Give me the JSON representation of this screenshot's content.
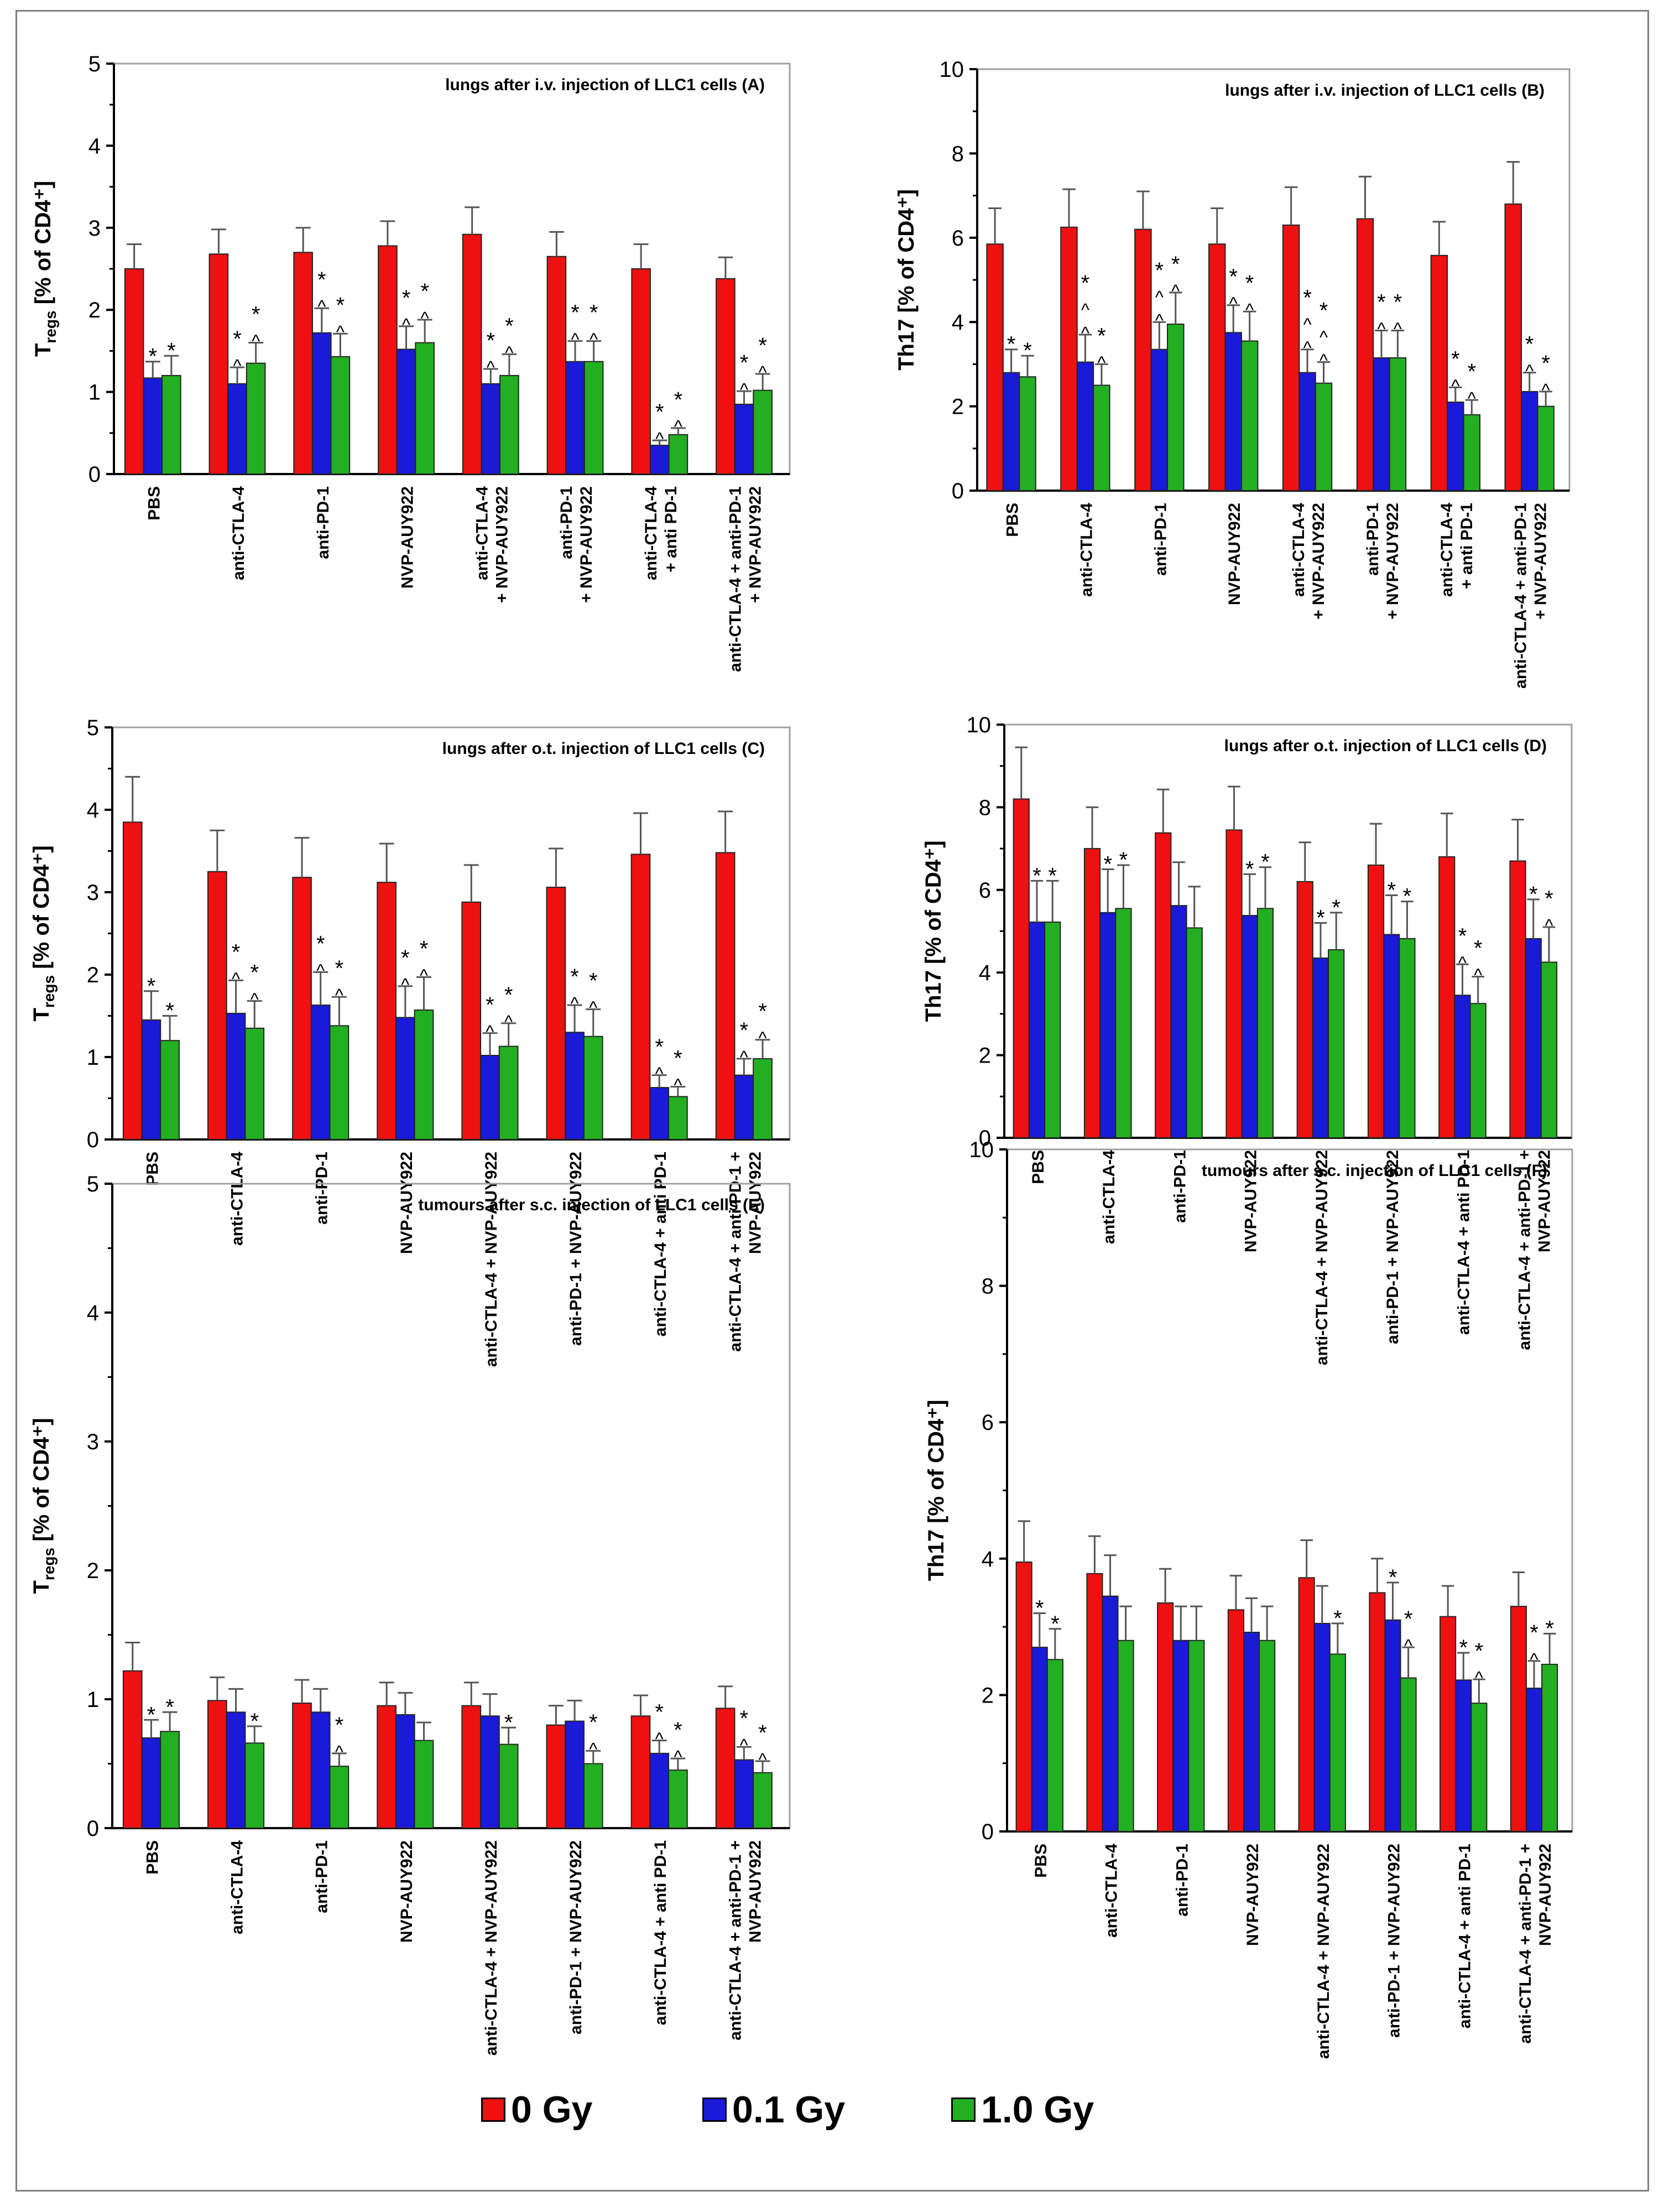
{
  "colors": {
    "0 Gy": "#ee1111",
    "0.1 Gy": "#1a1ad9",
    "1.0 Gy": "#22b022",
    "axis": "#000000",
    "error": "#555555"
  },
  "legend": {
    "items": [
      {
        "label": "0 Gy",
        "color": "#ee1111"
      },
      {
        "label": "0.1 Gy",
        "color": "#1a1ad9"
      },
      {
        "label": "1.0 Gy",
        "color": "#22b022"
      }
    ]
  },
  "chart_data": [
    {
      "id": "A",
      "type": "bar",
      "title": "lungs after i.v. injection of LLC1 cells (A)",
      "ylabel_main": "T",
      "ylabel_sub": "regs",
      "ylabel_rest": " [% of CD4⁺]",
      "ylim": [
        0,
        5
      ],
      "yticks": [
        "0",
        "1",
        "2",
        "3",
        "4",
        "5"
      ],
      "categories": [
        "PBS",
        "anti-CTLA-4",
        "anti-PD-1",
        "NVP-AUY922",
        "anti-CTLA-4\n+ NVP-AUY922",
        "anti-PD-1\n+ NVP-AUY922",
        "anti-CTLA-4\n+ anti PD-1",
        "anti-CTLA-4 + anti-PD-1\n+ NVP-AUY922"
      ],
      "series": [
        {
          "name": "0 Gy",
          "values": [
            2.5,
            2.68,
            2.7,
            2.78,
            2.92,
            2.65,
            2.5,
            2.38
          ],
          "errors": [
            0.3,
            0.3,
            0.3,
            0.3,
            0.33,
            0.3,
            0.3,
            0.26
          ]
        },
        {
          "name": "0.1 Gy",
          "values": [
            1.17,
            1.1,
            1.72,
            1.52,
            1.1,
            1.37,
            0.35,
            0.85
          ],
          "errors": [
            0.2,
            0.2,
            0.3,
            0.28,
            0.18,
            0.25,
            0.06,
            0.16
          ]
        },
        {
          "name": "1.0 Gy",
          "values": [
            1.2,
            1.35,
            1.43,
            1.6,
            1.2,
            1.37,
            0.48,
            1.02
          ],
          "errors": [
            0.24,
            0.25,
            0.28,
            0.28,
            0.26,
            0.25,
            0.08,
            0.2
          ]
        }
      ],
      "annotations": [
        [
          "",
          "*",
          "*"
        ],
        [
          "",
          "*^",
          "*^"
        ],
        [
          "",
          "*^",
          "*^"
        ],
        [
          "",
          "*^",
          "*^"
        ],
        [
          "",
          "*^",
          "*^"
        ],
        [
          "",
          "*^",
          "*^"
        ],
        [
          "",
          "*^",
          "*^"
        ],
        [
          "",
          "*^",
          "*^"
        ]
      ]
    },
    {
      "id": "B",
      "type": "bar",
      "title": "lungs after i.v. injection of LLC1 cells (B)",
      "ylabel_main": "Th17",
      "ylabel_sub": "",
      "ylabel_rest": " [% of CD4⁺]",
      "ylim": [
        0,
        10
      ],
      "yticks": [
        "0",
        "2",
        "4",
        "6",
        "8",
        "10"
      ],
      "categories": [
        "PBS",
        "anti-CTLA-4",
        "anti-PD-1",
        "NVP-AUY922",
        "anti-CTLA-4\n+ NVP-AUY922",
        "anti-PD-1\n+ NVP-AUY922",
        "anti-CTLA-4\n+ anti PD-1",
        "anti-CTLA-4 + anti-PD-1\n+ NVP-AUY922"
      ],
      "series": [
        {
          "name": "0 Gy",
          "values": [
            5.85,
            6.25,
            6.2,
            5.85,
            6.3,
            6.45,
            5.58,
            6.8
          ],
          "errors": [
            0.85,
            0.9,
            0.9,
            0.85,
            0.9,
            1.0,
            0.8,
            1.0
          ]
        },
        {
          "name": "0.1 Gy",
          "values": [
            2.8,
            3.05,
            3.35,
            3.75,
            2.8,
            3.15,
            2.1,
            2.35
          ],
          "errors": [
            0.55,
            0.65,
            0.65,
            0.65,
            0.55,
            0.65,
            0.35,
            0.45
          ]
        },
        {
          "name": "1.0 Gy",
          "values": [
            2.7,
            2.5,
            3.95,
            3.55,
            2.55,
            3.15,
            1.8,
            2.0
          ],
          "errors": [
            0.5,
            0.5,
            0.75,
            0.7,
            0.5,
            0.65,
            0.35,
            0.35
          ]
        }
      ],
      "annotations": [
        [
          "",
          "*",
          "*"
        ],
        [
          "",
          "*^^",
          "*^"
        ],
        [
          "",
          "*^^",
          "*^"
        ],
        [
          "",
          "*^",
          "*^"
        ],
        [
          "",
          "*^^",
          "*^^"
        ],
        [
          "",
          "*^",
          "*^"
        ],
        [
          "",
          "*^",
          "*^"
        ],
        [
          "",
          "*^",
          "*^"
        ]
      ]
    },
    {
      "id": "C",
      "type": "bar",
      "title": "lungs after o.t. injection of LLC1 cells (C)",
      "ylabel_main": "T",
      "ylabel_sub": "regs",
      "ylabel_rest": " [% of CD4⁺]",
      "ylim": [
        0,
        5
      ],
      "yticks": [
        "0",
        "1",
        "2",
        "3",
        "4",
        "5"
      ],
      "categories": [
        "PBS",
        "anti-CTLA-4",
        "anti-PD-1",
        "NVP-AUY922",
        "anti-CTLA-4 + NVP-AUY922",
        "anti-PD-1 + NVP-AUY922",
        "anti-CTLA-4 + anti PD-1",
        "anti-CTLA-4 + anti-PD-1 +\nNVP-AUY922"
      ],
      "series": [
        {
          "name": "0 Gy",
          "values": [
            3.85,
            3.25,
            3.18,
            3.12,
            2.88,
            3.06,
            3.46,
            3.48
          ],
          "errors": [
            0.55,
            0.5,
            0.48,
            0.47,
            0.45,
            0.47,
            0.5,
            0.5
          ]
        },
        {
          "name": "0.1 Gy",
          "values": [
            1.45,
            1.53,
            1.63,
            1.48,
            1.02,
            1.3,
            0.63,
            0.78
          ],
          "errors": [
            0.35,
            0.4,
            0.4,
            0.38,
            0.27,
            0.33,
            0.15,
            0.2
          ]
        },
        {
          "name": "1.0 Gy",
          "values": [
            1.2,
            1.35,
            1.38,
            1.57,
            1.13,
            1.25,
            0.52,
            0.98
          ],
          "errors": [
            0.3,
            0.33,
            0.35,
            0.4,
            0.28,
            0.33,
            0.12,
            0.23
          ]
        }
      ],
      "annotations": [
        [
          "",
          "*",
          "*"
        ],
        [
          "",
          "*^",
          "*^"
        ],
        [
          "",
          "*^",
          "*^"
        ],
        [
          "",
          "*^",
          "*^"
        ],
        [
          "",
          "*^",
          "*^"
        ],
        [
          "",
          "*^",
          "*^"
        ],
        [
          "",
          "*^",
          "*^"
        ],
        [
          "",
          "*^",
          "*^"
        ]
      ]
    },
    {
      "id": "D",
      "type": "bar",
      "title": "lungs after o.t. injection of LLC1 cells (D)",
      "ylabel_main": "Th17",
      "ylabel_sub": "",
      "ylabel_rest": " [% of CD4⁺]",
      "ylim": [
        0,
        10
      ],
      "yticks": [
        "0",
        "2",
        "4",
        "6",
        "8",
        "10"
      ],
      "categories": [
        "PBS",
        "anti-CTLA-4",
        "anti-PD-1",
        "NVP-AUY922",
        "anti-CTLA-4 + NVP-AUY922",
        "anti-PD-1 + NVP-AUY922",
        "anti-CTLA-4 + anti PD-1",
        "anti-CTLA-4 + anti-PD-1 +\nNVP-AUY922"
      ],
      "series": [
        {
          "name": "0 Gy",
          "values": [
            8.2,
            7.0,
            7.38,
            7.45,
            6.2,
            6.6,
            6.8,
            6.7
          ],
          "errors": [
            1.25,
            1.0,
            1.05,
            1.05,
            0.95,
            1.0,
            1.05,
            1.0
          ]
        },
        {
          "name": "0.1 Gy",
          "values": [
            5.22,
            5.45,
            5.62,
            5.38,
            4.35,
            4.92,
            3.45,
            4.82
          ],
          "errors": [
            1.0,
            1.05,
            1.05,
            1.0,
            0.85,
            0.95,
            0.75,
            0.95
          ]
        },
        {
          "name": "1.0 Gy",
          "values": [
            5.22,
            5.55,
            5.08,
            5.55,
            4.55,
            4.82,
            3.25,
            4.25
          ],
          "errors": [
            1.0,
            1.05,
            1.0,
            1.0,
            0.9,
            0.9,
            0.65,
            0.85
          ]
        }
      ],
      "annotations": [
        [
          "",
          "*",
          "*"
        ],
        [
          "",
          "*",
          "*"
        ],
        [
          "",
          "",
          ""
        ],
        [
          "",
          "*",
          "*"
        ],
        [
          "",
          "*",
          "*"
        ],
        [
          "",
          "*",
          "*"
        ],
        [
          "",
          "*^",
          "*^"
        ],
        [
          "",
          "*",
          "*^"
        ]
      ]
    },
    {
      "id": "E",
      "type": "bar",
      "title": "tumours after s.c. injection of LLC1 cells (E)",
      "ylabel_main": "T",
      "ylabel_sub": "regs",
      "ylabel_rest": " [% of CD4⁺]",
      "ylim": [
        0,
        5
      ],
      "yticks": [
        "0",
        "1",
        "2",
        "3",
        "4",
        "5"
      ],
      "categories": [
        "PBS",
        "anti-CTLA-4",
        "anti-PD-1",
        "NVP-AUY922",
        "anti-CTLA-4 + NVP-AUY922",
        "anti-PD-1 + NVP-AUY922",
        "anti-CTLA-4 + anti PD-1",
        "anti-CTLA-4 + anti-PD-1 +\nNVP-AUY922"
      ],
      "series": [
        {
          "name": "0 Gy",
          "values": [
            1.22,
            0.99,
            0.97,
            0.95,
            0.95,
            0.8,
            0.87,
            0.93
          ],
          "errors": [
            0.22,
            0.18,
            0.18,
            0.18,
            0.18,
            0.15,
            0.16,
            0.17
          ]
        },
        {
          "name": "0.1 Gy",
          "values": [
            0.7,
            0.9,
            0.9,
            0.88,
            0.87,
            0.83,
            0.58,
            0.53
          ],
          "errors": [
            0.14,
            0.18,
            0.18,
            0.17,
            0.17,
            0.16,
            0.1,
            0.1
          ]
        },
        {
          "name": "1.0 Gy",
          "values": [
            0.75,
            0.66,
            0.48,
            0.68,
            0.65,
            0.5,
            0.45,
            0.43
          ],
          "errors": [
            0.15,
            0.13,
            0.1,
            0.14,
            0.13,
            0.1,
            0.09,
            0.09
          ]
        }
      ],
      "annotations": [
        [
          "",
          "*",
          "*"
        ],
        [
          "",
          "",
          "*"
        ],
        [
          "",
          "",
          "*^"
        ],
        [
          "",
          "",
          ""
        ],
        [
          "",
          "",
          "*"
        ],
        [
          "",
          "",
          "*^"
        ],
        [
          "",
          "*^",
          "*^"
        ],
        [
          "",
          "*^",
          "*^"
        ]
      ]
    },
    {
      "id": "F",
      "type": "bar",
      "title": "tumours after s.c. injection of LLC1 cells (F)",
      "ylabel_main": "Th17",
      "ylabel_sub": "",
      "ylabel_rest": " [% of CD4⁺]",
      "ylim": [
        0,
        10
      ],
      "yticks": [
        "0",
        "2",
        "4",
        "6",
        "8",
        "10"
      ],
      "categories": [
        "PBS",
        "anti-CTLA-4",
        "anti-PD-1",
        "NVP-AUY922",
        "anti-CTLA-4 + NVP-AUY922",
        "anti-PD-1 + NVP-AUY922",
        "anti-CTLA-4 + anti PD-1",
        "anti-CTLA-4 + anti-PD-1 +\nNVP-AUY922"
      ],
      "series": [
        {
          "name": "0 Gy",
          "values": [
            3.95,
            3.78,
            3.35,
            3.25,
            3.72,
            3.5,
            3.15,
            3.3
          ],
          "errors": [
            0.6,
            0.55,
            0.5,
            0.5,
            0.55,
            0.5,
            0.45,
            0.5
          ]
        },
        {
          "name": "0.1 Gy",
          "values": [
            2.7,
            3.45,
            2.8,
            2.92,
            3.05,
            3.1,
            2.22,
            2.1
          ],
          "errors": [
            0.5,
            0.6,
            0.5,
            0.5,
            0.55,
            0.55,
            0.4,
            0.4
          ]
        },
        {
          "name": "1.0 Gy",
          "values": [
            2.52,
            2.8,
            2.8,
            2.8,
            2.6,
            2.25,
            1.88,
            2.45
          ],
          "errors": [
            0.45,
            0.5,
            0.5,
            0.5,
            0.45,
            0.45,
            0.35,
            0.45
          ]
        }
      ],
      "annotations": [
        [
          "",
          "*",
          "*"
        ],
        [
          "",
          "",
          ""
        ],
        [
          "",
          "",
          ""
        ],
        [
          "",
          "",
          ""
        ],
        [
          "",
          "",
          "*"
        ],
        [
          "",
          "*",
          "*^"
        ],
        [
          "",
          "*",
          "*^"
        ],
        [
          "",
          "*^",
          "*"
        ]
      ]
    }
  ]
}
